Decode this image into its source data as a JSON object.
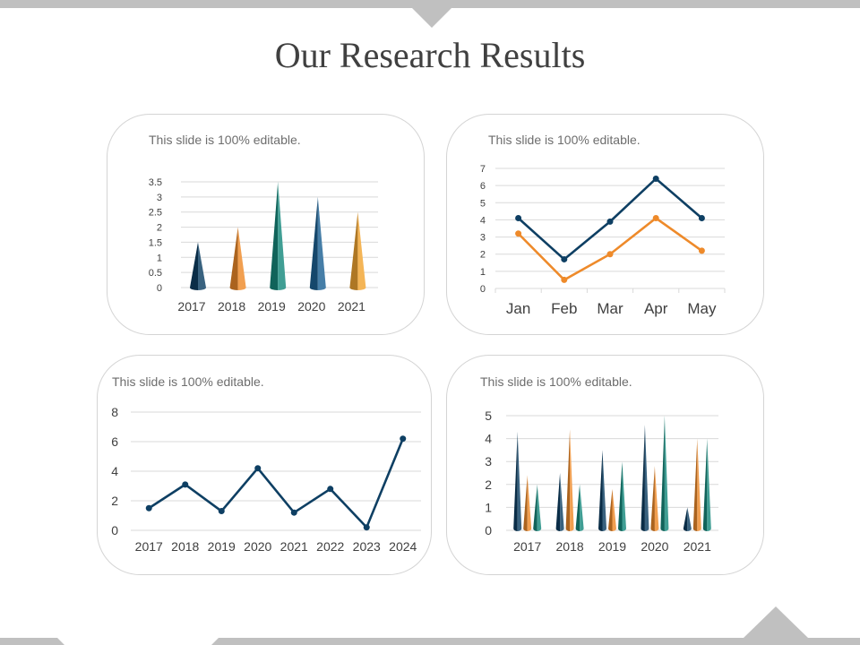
{
  "page": {
    "title": "Our Research Results",
    "colors": {
      "dark_blue": "#0e3f63",
      "orange": "#ee8a2a",
      "teal": "#16897d",
      "mid_blue": "#1d6294",
      "gold": "#f2a532",
      "gray_deco": "#c0c0c0"
    }
  },
  "panels": [
    {
      "note": "This slide is 100% editable."
    },
    {
      "note": "This slide is 100% editable."
    },
    {
      "note": "This slide is 100% editable."
    },
    {
      "note": "This slide is 100% editable."
    }
  ],
  "chart_data": [
    {
      "type": "bar",
      "style": "3d-cone",
      "categories": [
        "2017",
        "2018",
        "2019",
        "2020",
        "2021"
      ],
      "series": [
        {
          "values": [
            1.5,
            2.0,
            3.5,
            3.0,
            2.5
          ]
        }
      ],
      "point_colors": [
        "#0e3f63",
        "#ee8a2a",
        "#16897d",
        "#1d6294",
        "#f2a532"
      ],
      "ylim": [
        0,
        3.5
      ],
      "yticks": [
        "0",
        "0.5",
        "1",
        "1.5",
        "2",
        "2.5",
        "3",
        "3.5"
      ],
      "grid": true,
      "legend": "none"
    },
    {
      "type": "line",
      "categories": [
        "Jan",
        "Feb",
        "Mar",
        "Apr",
        "May"
      ],
      "series": [
        {
          "values": [
            4.1,
            1.7,
            3.9,
            6.4,
            4.1
          ],
          "color": "#0e3f63"
        },
        {
          "values": [
            3.2,
            0.5,
            2.0,
            4.1,
            2.2
          ],
          "color": "#ee8a2a"
        }
      ],
      "ylim": [
        0,
        7
      ],
      "yticks": [
        "0",
        "1",
        "2",
        "3",
        "4",
        "5",
        "6",
        "7"
      ],
      "grid": true,
      "legend": "none"
    },
    {
      "type": "line",
      "categories": [
        "2017",
        "2018",
        "2019",
        "2020",
        "2021",
        "2022",
        "2023",
        "2024"
      ],
      "series": [
        {
          "values": [
            1.5,
            3.1,
            1.3,
            4.2,
            1.2,
            2.8,
            0.2,
            6.2
          ],
          "color": "#0e3f63"
        }
      ],
      "ylim": [
        0,
        8
      ],
      "yticks": [
        "0",
        "2",
        "4",
        "6",
        "8"
      ],
      "grid": true,
      "legend": "none"
    },
    {
      "type": "bar",
      "style": "3d-cone",
      "categories": [
        "2017",
        "2018",
        "2019",
        "2020",
        "2021"
      ],
      "series": [
        {
          "values": [
            4.3,
            2.5,
            3.5,
            4.6,
            1.0
          ],
          "color": "#0e3f63"
        },
        {
          "values": [
            2.4,
            4.4,
            1.8,
            2.8,
            4.0
          ],
          "color": "#ee8a2a"
        },
        {
          "values": [
            2.0,
            2.0,
            3.0,
            5.0,
            4.0
          ],
          "color": "#16897d"
        }
      ],
      "ylim": [
        0,
        5
      ],
      "yticks": [
        "0",
        "1",
        "2",
        "3",
        "4",
        "5"
      ],
      "grid": true,
      "legend": "none"
    }
  ]
}
